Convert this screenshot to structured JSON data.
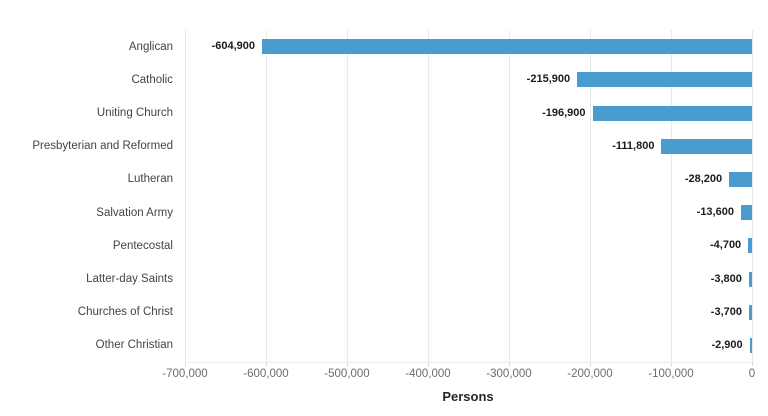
{
  "chart_data": {
    "type": "bar",
    "orientation": "horizontal",
    "title": "",
    "xlabel": "Persons",
    "ylabel": "",
    "xlim": [
      -700000,
      0
    ],
    "grid": true,
    "legend": false,
    "bar_color": "#4a9cce",
    "categories": [
      "Anglican",
      "Catholic",
      "Uniting Church",
      "Presbyterian and Reformed",
      "Lutheran",
      "Salvation Army",
      "Pentecostal",
      "Latter-day Saints",
      "Churches of Christ",
      "Other Christian"
    ],
    "values": [
      -604900,
      -215900,
      -196900,
      -111800,
      -28200,
      -13600,
      -4700,
      -3800,
      -3700,
      -2900
    ],
    "data_labels": [
      "-604,900",
      "-215,900",
      "-196,900",
      "-111,800",
      "-28,200",
      "-13,600",
      "-4,700",
      "-3,800",
      "-3,700",
      "-2,900"
    ],
    "xticks": [
      {
        "value": -700000,
        "label": "-700,000"
      },
      {
        "value": -600000,
        "label": "-600,000"
      },
      {
        "value": -500000,
        "label": "-500,000"
      },
      {
        "value": -400000,
        "label": "-400,000"
      },
      {
        "value": -300000,
        "label": "-300,000"
      },
      {
        "value": -200000,
        "label": "-200,000"
      },
      {
        "value": -100000,
        "label": "-100,000"
      },
      {
        "value": 0,
        "label": "0"
      }
    ]
  }
}
